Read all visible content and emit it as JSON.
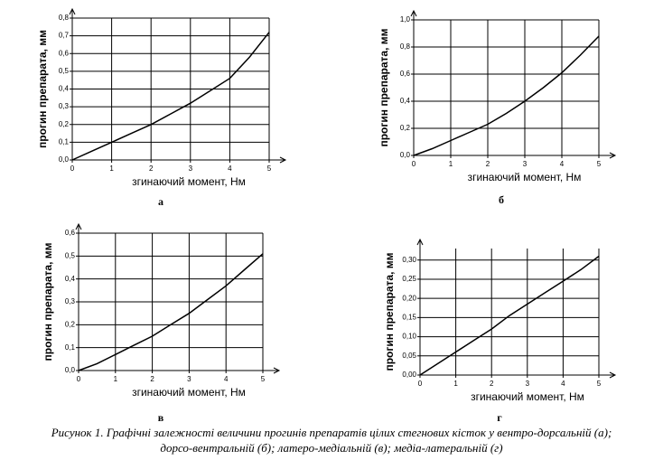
{
  "chart_data": [
    {
      "type": "line",
      "panel": "а",
      "xlabel": "згинаючий момент, Нм",
      "ylabel": "прогин препарата, мм",
      "x": [
        0,
        0.5,
        1,
        1.5,
        2,
        2.5,
        3,
        3.5,
        4,
        4.5,
        5
      ],
      "values": [
        0,
        0.05,
        0.1,
        0.15,
        0.2,
        0.26,
        0.32,
        0.39,
        0.46,
        0.58,
        0.72
      ],
      "xlim": [
        0,
        5
      ],
      "ylim": [
        0,
        0.8
      ],
      "xticks": [
        0,
        1,
        2,
        3,
        4,
        5
      ],
      "yticks": [
        {
          "value": 0,
          "label": "0,0"
        },
        {
          "value": 0.1,
          "label": "0,1"
        },
        {
          "value": 0.2,
          "label": "0,2"
        },
        {
          "value": 0.3,
          "label": "0,3"
        },
        {
          "value": 0.4,
          "label": "0,4"
        },
        {
          "value": 0.5,
          "label": "0,5"
        },
        {
          "value": 0.6,
          "label": "0,6"
        },
        {
          "value": 0.7,
          "label": "0,7"
        },
        {
          "value": 0.8,
          "label": "0,8"
        }
      ],
      "grid": true,
      "color": "#000000"
    },
    {
      "type": "line",
      "panel": "б",
      "xlabel": "згинаючий момент, Нм",
      "ylabel": "прогин препарата, мм",
      "x": [
        0,
        0.5,
        1,
        1.5,
        2,
        2.5,
        3,
        3.5,
        4,
        4.5,
        5
      ],
      "values": [
        0,
        0.05,
        0.11,
        0.17,
        0.23,
        0.31,
        0.4,
        0.5,
        0.61,
        0.74,
        0.88
      ],
      "xlim": [
        0,
        5
      ],
      "ylim": [
        0,
        1.0
      ],
      "xticks": [
        0,
        1,
        2,
        3,
        4,
        5
      ],
      "yticks": [
        {
          "value": 0,
          "label": "0,0"
        },
        {
          "value": 0.2,
          "label": "0,2"
        },
        {
          "value": 0.4,
          "label": "0,4"
        },
        {
          "value": 0.6,
          "label": "0,6"
        },
        {
          "value": 0.8,
          "label": "0,8"
        },
        {
          "value": 1.0,
          "label": "1,0"
        }
      ],
      "grid": true,
      "color": "#000000"
    },
    {
      "type": "line",
      "panel": "в",
      "xlabel": "згинаючий момент, Нм",
      "ylabel": "прогин препарата, мм",
      "x": [
        0,
        0.5,
        1,
        1.5,
        2,
        2.5,
        3,
        3.5,
        4,
        4.5,
        5
      ],
      "values": [
        0,
        0.03,
        0.07,
        0.11,
        0.15,
        0.2,
        0.25,
        0.31,
        0.37,
        0.44,
        0.51
      ],
      "xlim": [
        0,
        5
      ],
      "ylim": [
        0,
        0.6
      ],
      "xticks": [
        0,
        1,
        2,
        3,
        4,
        5
      ],
      "yticks": [
        {
          "value": 0,
          "label": "0,0"
        },
        {
          "value": 0.1,
          "label": "0,1"
        },
        {
          "value": 0.2,
          "label": "0,2"
        },
        {
          "value": 0.3,
          "label": "0,3"
        },
        {
          "value": 0.4,
          "label": "0,4"
        },
        {
          "value": 0.5,
          "label": "0,5"
        },
        {
          "value": 0.6,
          "label": "0,6"
        }
      ],
      "grid": true,
      "color": "#000000"
    },
    {
      "type": "line",
      "panel": "г",
      "xlabel": "згинаючий момент, Нм",
      "ylabel": "прогин препарата, мм",
      "x": [
        0,
        0.5,
        1,
        1.5,
        2,
        2.5,
        3,
        3.5,
        4,
        4.5,
        5
      ],
      "values": [
        0,
        0.03,
        0.06,
        0.09,
        0.12,
        0.155,
        0.185,
        0.215,
        0.245,
        0.275,
        0.31
      ],
      "xlim": [
        0,
        5
      ],
      "ylim": [
        0,
        0.33
      ],
      "xticks": [
        0,
        1,
        2,
        3,
        4,
        5
      ],
      "yticks": [
        {
          "value": 0,
          "label": "0,00"
        },
        {
          "value": 0.05,
          "label": "0,05"
        },
        {
          "value": 0.1,
          "label": "0,10"
        },
        {
          "value": 0.15,
          "label": "0,15"
        },
        {
          "value": 0.2,
          "label": "0,20"
        },
        {
          "value": 0.25,
          "label": "0,25"
        },
        {
          "value": 0.3,
          "label": "0,30"
        }
      ],
      "grid": true,
      "color": "#000000"
    }
  ],
  "caption": [
    "Рисунок 1. Графічні залежності величини прогинів препаратів цілих стегнових кісток у вентро-дорсальній (а);",
    "дорсо-вентральній (б); латеро-медіальній (в); медіа-латеральній (г)"
  ]
}
